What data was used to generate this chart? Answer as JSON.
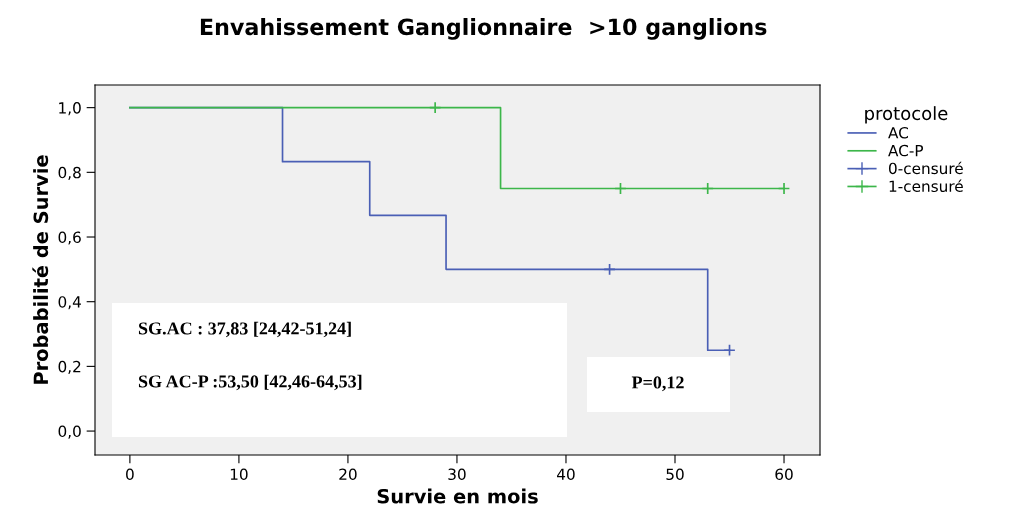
{
  "chart_data": {
    "type": "step",
    "title": "Envahissement Ganglionnaire  >10 ganglions",
    "xlabel": "Survie en mois",
    "ylabel": "Probabilité de Survie",
    "legend_title": "protocole",
    "legend": "right",
    "grid": false,
    "xlim": [
      -3.2,
      63.3
    ],
    "xticks": [
      0,
      10,
      20,
      30,
      40,
      50,
      60
    ],
    "ylim": [
      -0.074,
      1.07
    ],
    "yticks": [
      {
        "value": 0,
        "label": "0,0"
      },
      {
        "value": 0.2,
        "label": "0,2"
      },
      {
        "value": 0.4,
        "label": "0,4"
      },
      {
        "value": 0.6,
        "label": "0,6"
      },
      {
        "value": 0.8,
        "label": "0,8"
      },
      {
        "value": 1,
        "label": "1,0"
      }
    ],
    "series": [
      {
        "name": "AC",
        "color": "#4a5fb5",
        "marker": "none",
        "x": [
          0,
          14,
          22,
          29,
          53,
          55
        ],
        "values": [
          1,
          0.833,
          0.667,
          0.5,
          0.25,
          0.25
        ]
      },
      {
        "name": "AC-P",
        "color": "#3cb64a",
        "marker": "none",
        "x": [
          0,
          34,
          60
        ],
        "values": [
          1,
          0.75,
          0.75
        ]
      },
      {
        "name": "0-censuré",
        "type": "scatter",
        "color": "#4a5fb5",
        "marker": "cross",
        "x": [
          44,
          55
        ],
        "values": [
          0.5,
          0.25
        ]
      },
      {
        "name": "1-censuré",
        "type": "scatter",
        "color": "#3cb64a",
        "marker": "cross",
        "x": [
          28,
          45,
          53,
          60
        ],
        "values": [
          1,
          0.75,
          0.75,
          0.75
        ]
      }
    ],
    "annotations": [
      "SG.AC : 37,83 [24,42-51,24]",
      "SG AC-P :53,50 [42,46-64,53]",
      "P=0,12"
    ]
  }
}
